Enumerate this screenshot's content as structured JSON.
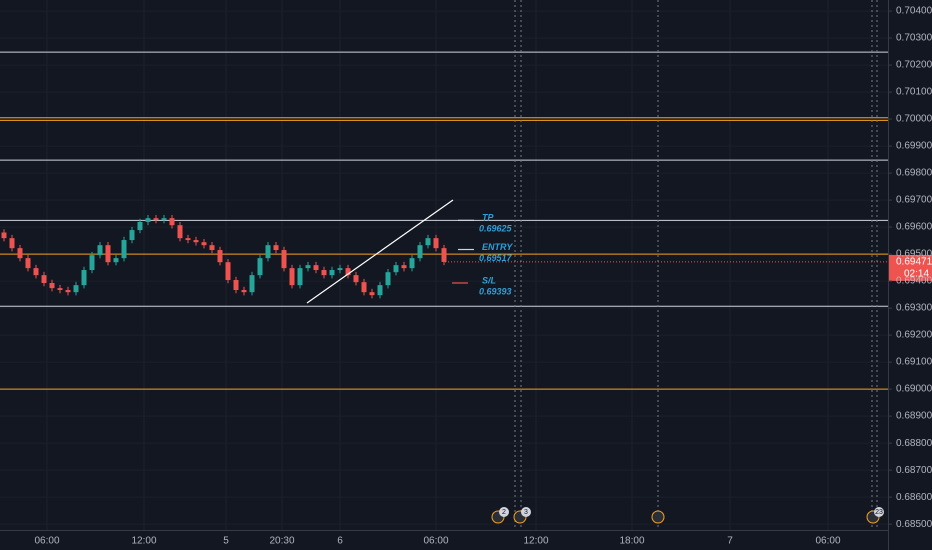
{
  "chart_data": {
    "type": "candlestick",
    "up_color": "#26a69a",
    "down_color": "#ef5350",
    "xlim": [
      -0.5,
      110.5
    ],
    "ylim": [
      0.68456,
      0.70441
    ],
    "grid": true,
    "xticks": [
      {
        "value": 5.375,
        "label": "06:00"
      },
      {
        "value": 17.5,
        "label": "12:00"
      },
      {
        "value": 27.75,
        "label": "5"
      },
      {
        "value": 34.75,
        "label": "20:30"
      },
      {
        "value": 42,
        "label": "6"
      },
      {
        "value": 54,
        "label": "06:00"
      },
      {
        "value": 66.5,
        "label": "12:00"
      },
      {
        "value": 78.5,
        "label": "18:00"
      },
      {
        "value": 90.75,
        "label": "7"
      },
      {
        "value": 103,
        "label": "06:00"
      }
    ],
    "yticks": [
      {
        "value": 0.704,
        "label": "0.70400"
      },
      {
        "value": 0.703,
        "label": "0.70300"
      },
      {
        "value": 0.702,
        "label": "0.70200"
      },
      {
        "value": 0.701,
        "label": "0.70100"
      },
      {
        "value": 0.7,
        "label": "0.70000"
      },
      {
        "value": 0.699,
        "label": "0.69900"
      },
      {
        "value": 0.698,
        "label": "0.69800"
      },
      {
        "value": 0.697,
        "label": "0.69700"
      },
      {
        "value": 0.696,
        "label": "0.69600"
      },
      {
        "value": 0.695,
        "label": "0.69500"
      },
      {
        "value": 0.694,
        "label": "0.69400"
      },
      {
        "value": 0.693,
        "label": "0.69300"
      },
      {
        "value": 0.692,
        "label": "0.69200"
      },
      {
        "value": 0.691,
        "label": "0.69100"
      },
      {
        "value": 0.69,
        "label": "0.69000"
      },
      {
        "value": 0.689,
        "label": "0.68900"
      },
      {
        "value": 0.688,
        "label": "0.68800"
      },
      {
        "value": 0.687,
        "label": "0.68700"
      },
      {
        "value": 0.686,
        "label": "0.68600"
      },
      {
        "value": 0.685,
        "label": "0.68500"
      }
    ],
    "open": [
      0.6958,
      0.69559,
      0.69522,
      0.69485,
      0.69448,
      0.69422,
      0.69393,
      0.69374,
      0.69367,
      0.69359,
      0.69385,
      0.69441,
      0.69496,
      0.69533,
      0.6947,
      0.69485,
      0.69552,
      0.69589,
      0.69619,
      0.69633,
      0.69626,
      0.69633,
      0.69607,
      0.69559,
      0.69552,
      0.69544,
      0.69533,
      0.69515,
      0.6947,
      0.69404,
      0.69367,
      0.69359,
      0.69422,
      0.69485,
      0.69533,
      0.69515,
      0.69448,
      0.69385,
      0.69448,
      0.69459,
      0.69441,
      0.69422,
      0.69441,
      0.69448,
      0.69422,
      0.69396,
      0.69359,
      0.69348,
      0.69385,
      0.69433,
      0.69459,
      0.69448,
      0.69485,
      0.69533,
      0.69559,
      0.69522
    ],
    "high": [
      0.69592,
      0.69571,
      0.69534,
      0.69497,
      0.6946,
      0.69434,
      0.69405,
      0.69386,
      0.69379,
      0.69397,
      0.69453,
      0.69508,
      0.69545,
      0.69545,
      0.69497,
      0.69564,
      0.69601,
      0.69631,
      0.69645,
      0.69645,
      0.69645,
      0.69645,
      0.69619,
      0.69571,
      0.69564,
      0.69556,
      0.69545,
      0.69527,
      0.69482,
      0.69416,
      0.69379,
      0.69434,
      0.69497,
      0.69545,
      0.69545,
      0.69527,
      0.6946,
      0.6946,
      0.69471,
      0.69471,
      0.69453,
      0.69453,
      0.6946,
      0.6946,
      0.69434,
      0.69408,
      0.69371,
      0.69397,
      0.69445,
      0.69471,
      0.69471,
      0.69497,
      0.69545,
      0.69571,
      0.69571,
      0.69534
    ],
    "low": [
      0.69547,
      0.6951,
      0.69473,
      0.69436,
      0.6941,
      0.69381,
      0.69362,
      0.69355,
      0.69347,
      0.69347,
      0.69373,
      0.69429,
      0.69484,
      0.69458,
      0.69458,
      0.69473,
      0.6954,
      0.69577,
      0.69607,
      0.69614,
      0.69614,
      0.69595,
      0.69547,
      0.6954,
      0.69532,
      0.69521,
      0.69503,
      0.69458,
      0.69392,
      0.69355,
      0.69347,
      0.69347,
      0.6941,
      0.69473,
      0.69503,
      0.69436,
      0.69373,
      0.69373,
      0.69436,
      0.69429,
      0.6941,
      0.6941,
      0.69429,
      0.6941,
      0.69384,
      0.69347,
      0.69336,
      0.69336,
      0.69373,
      0.69421,
      0.69436,
      0.69436,
      0.69473,
      0.69521,
      0.6951,
      0.69459
    ],
    "close": [
      0.69559,
      0.69522,
      0.69485,
      0.69448,
      0.69422,
      0.69393,
      0.69374,
      0.69367,
      0.69359,
      0.69385,
      0.69441,
      0.69496,
      0.69533,
      0.6947,
      0.69485,
      0.69552,
      0.69589,
      0.69619,
      0.69633,
      0.69626,
      0.69633,
      0.69607,
      0.69559,
      0.69552,
      0.69544,
      0.69533,
      0.69515,
      0.6947,
      0.69404,
      0.69367,
      0.69359,
      0.69422,
      0.69485,
      0.69533,
      0.69515,
      0.69448,
      0.69385,
      0.69448,
      0.69459,
      0.69441,
      0.69422,
      0.69441,
      0.69448,
      0.69422,
      0.69396,
      0.69359,
      0.69348,
      0.69385,
      0.69433,
      0.69459,
      0.69448,
      0.69485,
      0.69533,
      0.69559,
      0.69522,
      0.69471
    ],
    "levels": [
      {
        "value": 0.70248,
        "color": "#d1d4dc"
      },
      {
        "value": 0.70005,
        "color": "#f7a21b"
      },
      {
        "value": 0.69995,
        "color": "#f7a21b"
      },
      {
        "value": 0.69848,
        "color": "#d1d4dc"
      },
      {
        "value": 0.69625,
        "color": "#d1d4dc"
      },
      {
        "value": 0.695,
        "color": "#f7a21b"
      },
      {
        "value": 0.69307,
        "color": "#d1d4dc"
      },
      {
        "value": 0.69,
        "color": "#f7a21b"
      }
    ],
    "annotations": [
      {
        "label": "TP",
        "value": 0.69625,
        "color": "#d1d4dc"
      },
      {
        "label": "ENTRY",
        "value": 0.69517,
        "color": "#d1d4dc"
      },
      {
        "label": "S/L",
        "value": 0.69393,
        "color": "#ef5350"
      }
    ],
    "countdown": "02:14",
    "events": [
      {
        "count": 2
      },
      {
        "count": 3
      },
      {
        "count": 23
      }
    ]
  }
}
